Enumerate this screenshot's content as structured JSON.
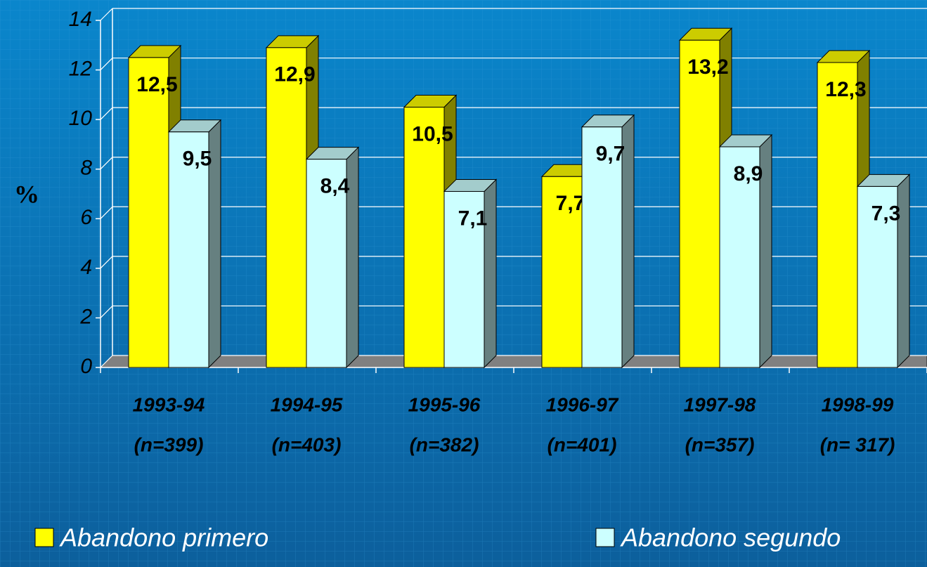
{
  "chart_data": {
    "type": "bar3d",
    "y_label": "%",
    "categories": [
      [
        "1993-94",
        "(n=399)"
      ],
      [
        "1994-95",
        "(n=403)"
      ],
      [
        "1995-96",
        "(n=382)"
      ],
      [
        "1996-97",
        "(n=401)"
      ],
      [
        "1997-98",
        "(n=357)"
      ],
      [
        "1998-99",
        "(n= 317)"
      ]
    ],
    "series": [
      {
        "name": "Abandono primero",
        "color": "#ffff00",
        "values": [
          12.5,
          12.9,
          10.5,
          7.7,
          13.2,
          12.3
        ],
        "value_labels": [
          "12,5",
          "12,9",
          "10,5",
          "7,7",
          "13,2",
          "12,3"
        ]
      },
      {
        "name": "Abandono segundo",
        "color": "#ccffff",
        "values": [
          9.5,
          8.4,
          7.1,
          9.7,
          8.9,
          7.3
        ],
        "value_labels": [
          "9,5",
          "8,4",
          "7,1",
          "9,7",
          "8,9",
          "7,3"
        ]
      }
    ],
    "ylim": [
      0,
      14
    ],
    "yticks": [
      0,
      2,
      4,
      6,
      8,
      10,
      12,
      14
    ],
    "grid": true
  }
}
